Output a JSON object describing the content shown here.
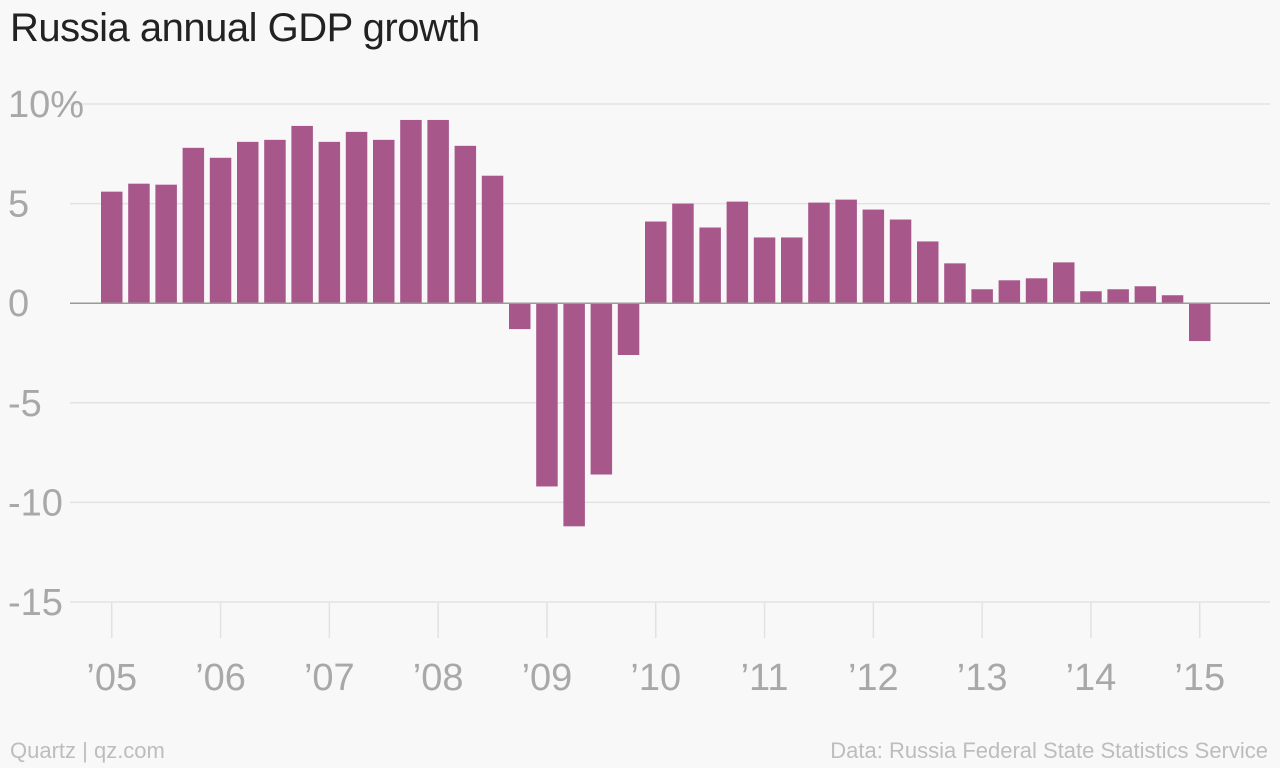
{
  "title": "Russia annual GDP growth",
  "footer": {
    "source_left": "Quartz | qz.com",
    "source_right": "Data: Russia Federal State Statistics Service"
  },
  "colors": {
    "bar": "#a7578a",
    "grid": "#e2e2e2",
    "zero_line": "#9a9a9a",
    "tick": "#a8a8a8"
  },
  "chart_data": {
    "type": "bar",
    "title": "Russia annual GDP growth",
    "xlabel": "",
    "ylabel": "",
    "ylim": [
      -15,
      10
    ],
    "yticks": [
      10,
      5,
      0,
      -5,
      -10,
      -15
    ],
    "ytick_labels": [
      "10%",
      "5",
      "0",
      "-5",
      "-10",
      "-15"
    ],
    "year_labels": [
      "’05",
      "’06",
      "’07",
      "’08",
      "’09",
      "’10",
      "’11",
      "’12",
      "’13",
      "’14",
      "’15"
    ],
    "grid": true,
    "categories": [
      "2005 Q1",
      "2005 Q2",
      "2005 Q3",
      "2005 Q4",
      "2006 Q1",
      "2006 Q2",
      "2006 Q3",
      "2006 Q4",
      "2007 Q1",
      "2007 Q2",
      "2007 Q3",
      "2007 Q4",
      "2008 Q1",
      "2008 Q2",
      "2008 Q3",
      "2008 Q4",
      "2009 Q1",
      "2009 Q2",
      "2009 Q3",
      "2009 Q4",
      "2010 Q1",
      "2010 Q2",
      "2010 Q3",
      "2010 Q4",
      "2011 Q1",
      "2011 Q2",
      "2011 Q3",
      "2011 Q4",
      "2012 Q1",
      "2012 Q2",
      "2012 Q3",
      "2012 Q4",
      "2013 Q1",
      "2013 Q2",
      "2013 Q3",
      "2013 Q4",
      "2014 Q1",
      "2014 Q2",
      "2014 Q3",
      "2014 Q4",
      "2015 Q1"
    ],
    "values": [
      5.6,
      6.0,
      5.95,
      7.8,
      7.3,
      8.1,
      8.2,
      8.9,
      8.1,
      8.6,
      8.2,
      9.2,
      9.2,
      7.9,
      6.4,
      -1.3,
      -9.2,
      -11.2,
      -8.6,
      -2.6,
      4.1,
      5.0,
      3.8,
      5.1,
      3.3,
      3.3,
      5.05,
      5.2,
      4.7,
      4.2,
      3.1,
      2.0,
      0.7,
      1.15,
      1.25,
      2.05,
      0.6,
      0.7,
      0.85,
      0.4,
      -1.9
    ]
  }
}
